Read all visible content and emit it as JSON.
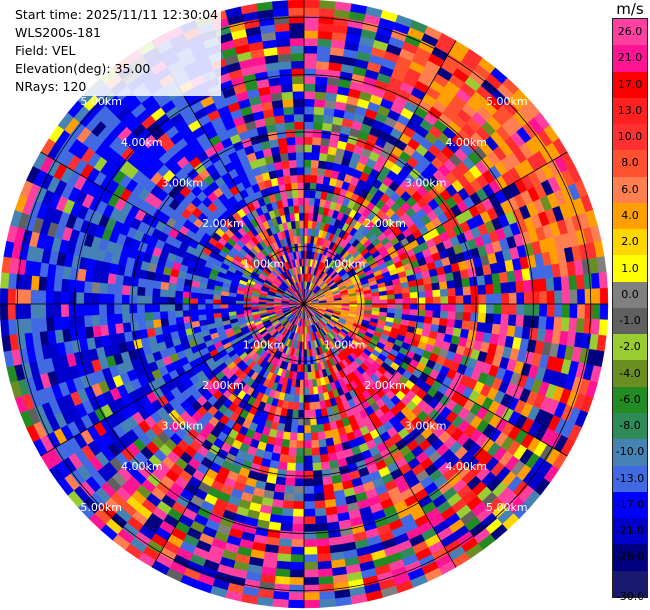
{
  "header": {
    "start_time": "Start time: 2025/11/11 12:30:04",
    "site": "WLS200s-181",
    "field": "Field: VEL",
    "elevation": "Elevation(deg): 35.00",
    "nrays": "NRays: 120"
  },
  "colorbar": {
    "unit": "m/s",
    "tick_labels": [
      "26.0",
      "21.0",
      "17.0",
      "13.0",
      "10.0",
      "8.0",
      "6.0",
      "4.0",
      "2.0",
      "1.0",
      "0.0",
      "-1.0",
      "-2.0",
      "-4.0",
      "-6.0",
      "-8.0",
      "-10.0",
      "-13.0",
      "-17.0",
      "-21.0",
      "-26.0",
      "-30.0"
    ],
    "bin_colors": [
      "#ff40a0",
      "#ff1493",
      "#ff0000",
      "#ff2020",
      "#ff3030",
      "#ff5030",
      "#ff7f50",
      "#ffa000",
      "#ffd700",
      "#ffff00",
      "#808080",
      "#606060",
      "#9acd32",
      "#6b8e23",
      "#228b22",
      "#2e8b57",
      "#4682b4",
      "#4169e1",
      "#0000ff",
      "#0000cd",
      "#000080",
      "#191970"
    ]
  },
  "chart_data": {
    "type": "heatmap",
    "projection": "polar PPI",
    "field": "VEL",
    "units": "m/s",
    "elevation_deg": 35.0,
    "nrays": 120,
    "range_rings_km": [
      1,
      2,
      3,
      4,
      5
    ],
    "range_ring_labels": [
      "1.00km",
      "2.00km",
      "3.00km",
      "4.00km",
      "5.00km"
    ],
    "spokes_deg": [
      0,
      30,
      60,
      90,
      120,
      150,
      180,
      210,
      240,
      270,
      300,
      330
    ],
    "vmin": -30,
    "vmax": 30,
    "dominant_patterns": [
      {
        "azimuth_deg_range": [
          20,
          80
        ],
        "range_km": [
          4.0,
          5.3
        ],
        "velocity_ms": [
          2,
          10
        ]
      },
      {
        "azimuth_deg_range": [
          60,
          120
        ],
        "range_km": [
          0.0,
          1.0
        ],
        "velocity_ms": [
          1,
          6
        ]
      },
      {
        "azimuth_deg_range": [
          130,
          160
        ],
        "range_km": [
          1.0,
          2.5
        ],
        "velocity_ms": [
          13,
          26
        ]
      },
      {
        "azimuth_deg_range": [
          230,
          300
        ],
        "range_km": [
          1.0,
          5.0
        ],
        "velocity_ms": [
          -26,
          -10
        ]
      },
      {
        "azimuth_deg_range": [
          300,
          340
        ],
        "range_km": [
          2.0,
          5.0
        ],
        "velocity_ms": [
          -21,
          -13
        ]
      }
    ]
  }
}
